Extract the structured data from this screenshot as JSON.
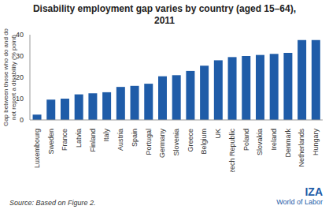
{
  "chart_data": {
    "type": "bar",
    "title": "Disability employment gap varies by country (aged 15–64), 2011",
    "y_label": "Gap between those who do and do not report a disability (% point)",
    "source": "Source: Based on Figure 2.",
    "logo": "IZA",
    "logo_sub": "World of Labor",
    "categories": [
      "Luxembourg",
      "Sweden",
      "France",
      "Latvia",
      "Finland",
      "Italy",
      "Austria",
      "Spain",
      "Portugal",
      "Germany",
      "Slovenia",
      "Greece",
      "Belgium",
      "UK",
      "Czech Republic",
      "Poland",
      "Slovakia",
      "Ireland",
      "Denmark",
      "Netherlands",
      "Hungary"
    ],
    "values": [
      2.5,
      9.5,
      10,
      12,
      12.5,
      13,
      15.5,
      16,
      17,
      20.5,
      21,
      23,
      25.5,
      28,
      29.5,
      30,
      30.5,
      31,
      31.5,
      37.5,
      37.5
    ],
    "color": "#1f5ca8",
    "ylim": [
      0,
      40
    ],
    "yticks": [
      0,
      10,
      20,
      30,
      40
    ],
    "grid": false
  }
}
